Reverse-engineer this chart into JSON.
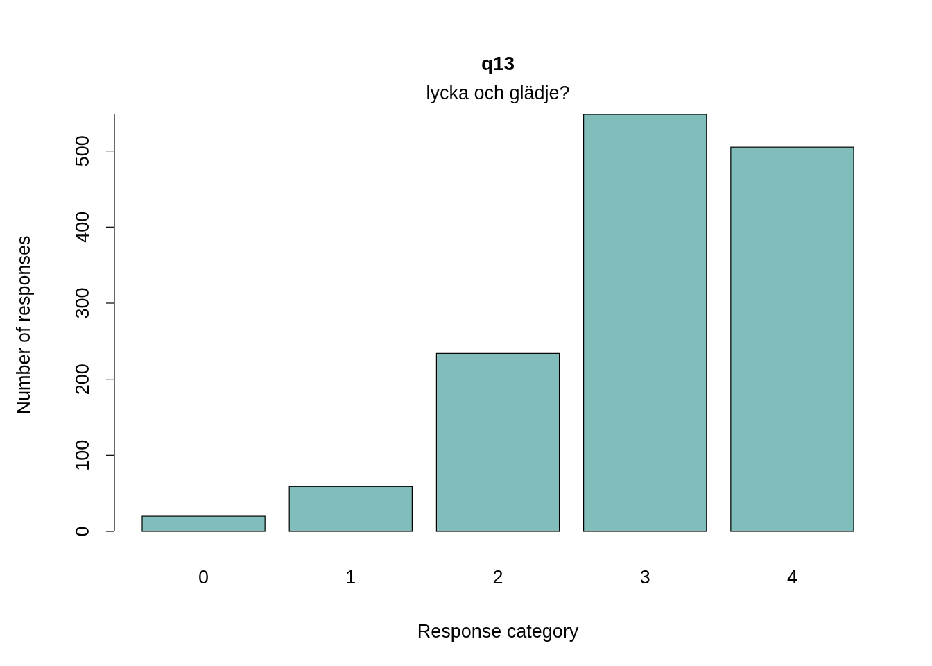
{
  "chart_data": {
    "type": "bar",
    "title": "q13",
    "subtitle": "lycka och glädje?",
    "xlabel": "Response category",
    "ylabel": "Number of responses",
    "categories": [
      "0",
      "1",
      "2",
      "3",
      "4"
    ],
    "values": [
      20,
      59,
      234,
      548,
      505
    ],
    "color": "#80bdbb",
    "ylim": [
      0,
      548
    ],
    "yticks": [
      0,
      100,
      200,
      300,
      400,
      500
    ],
    "grid": false
  }
}
